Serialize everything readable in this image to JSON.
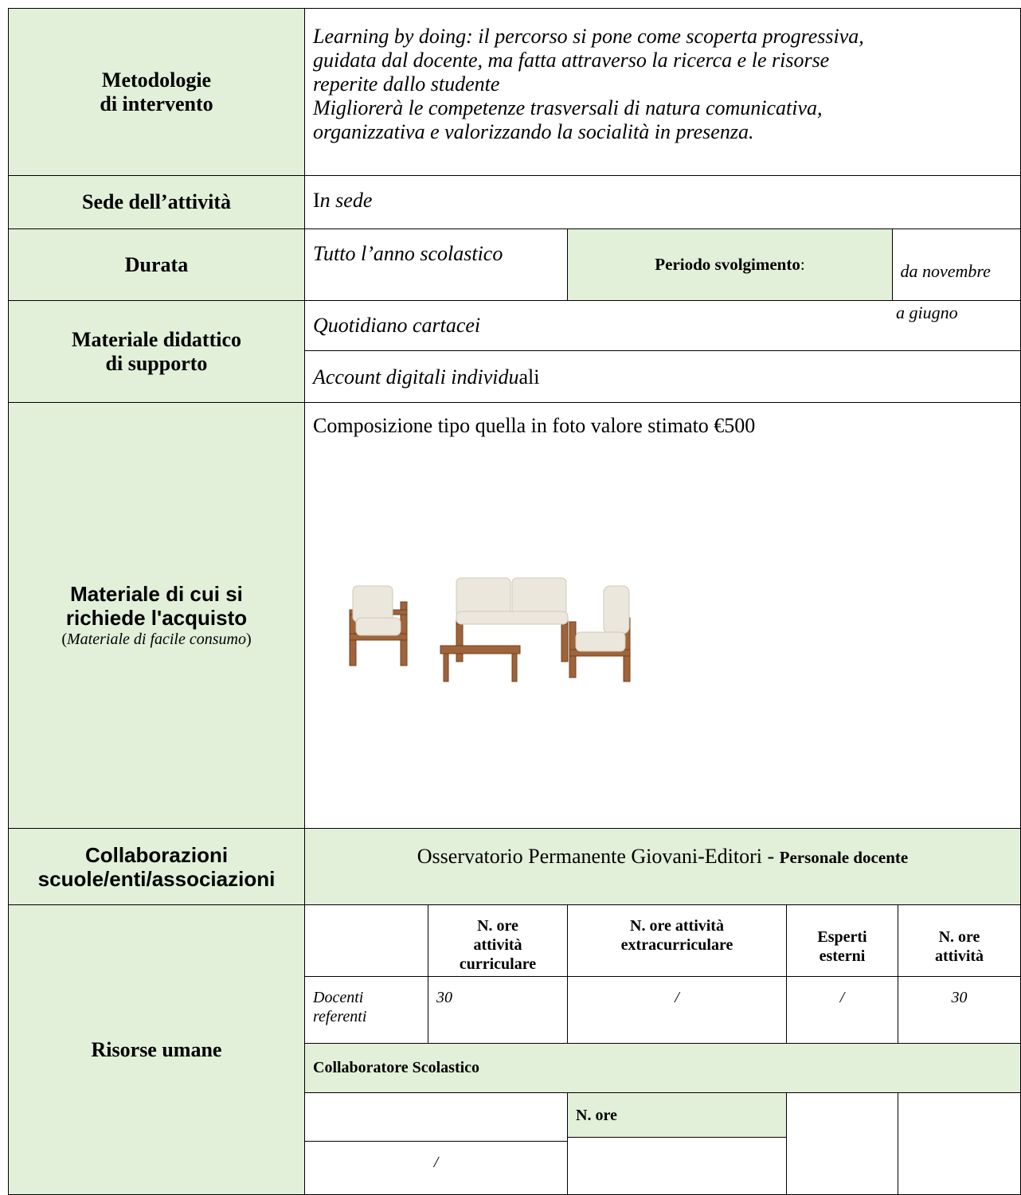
{
  "rows": {
    "methods": {
      "label": [
        "Metodologie",
        "di intervento"
      ],
      "text": [
        "Learning by doing: il percorso si pone come scoperta progressiva,",
        "guidata dal docente, ma fatta attraverso la ricerca e le risorse",
        "reperite dallo studente",
        "Migliorerà le competenze trasversali di natura comunicativa,",
        "organizzativa e valorizzando la socialità in presenza."
      ]
    },
    "location": {
      "label": "Sede dell’attività",
      "text": [
        "I",
        "n sede"
      ]
    },
    "duration": {
      "label": "Durata",
      "text": "Tutto l’anno scolastico",
      "period_label": [
        "Periodo svolgimento",
        ":"
      ],
      "period": [
        " da novembre",
        "a giugno"
      ]
    },
    "materials": {
      "label": [
        "Materiale didattico",
        "di supporto"
      ],
      "items": [
        "Quotidiano cartacei",
        [
          "Account digitali individu",
          "ali"
        ]
      ]
    },
    "purchase": {
      "label": [
        "Materiale di cui si",
        "richiede l'acquisto"
      ],
      "note": [
        "(",
        "Materiale di facile consumo",
        ")"
      ],
      "text": "Composizione tipo quella in foto valore stimato €500"
    },
    "collaborations": {
      "label": [
        "Collaborazioni",
        "scuole/enti/associazioni"
      ],
      "text": [
        "Osservatorio Permanente Giovani-Editori - ",
        "Personale docente"
      ]
    },
    "resources": {
      "label": "Risorse umane",
      "headers": [
        [
          "N. ore",
          "attività",
          "curriculare"
        ],
        [
          "N. ore attività",
          "extracurriculare"
        ],
        [
          "Esperti",
          "esterni"
        ],
        [
          "N. ore",
          "attività"
        ]
      ],
      "teachers": {
        "label": [
          "Docenti",
          "referenti"
        ],
        "values": [
          "30",
          "/",
          "/",
          "30"
        ]
      },
      "staff": {
        "label": "Collaboratore Scolastico",
        "hours_label": "N. ore",
        "value": "/"
      }
    }
  }
}
